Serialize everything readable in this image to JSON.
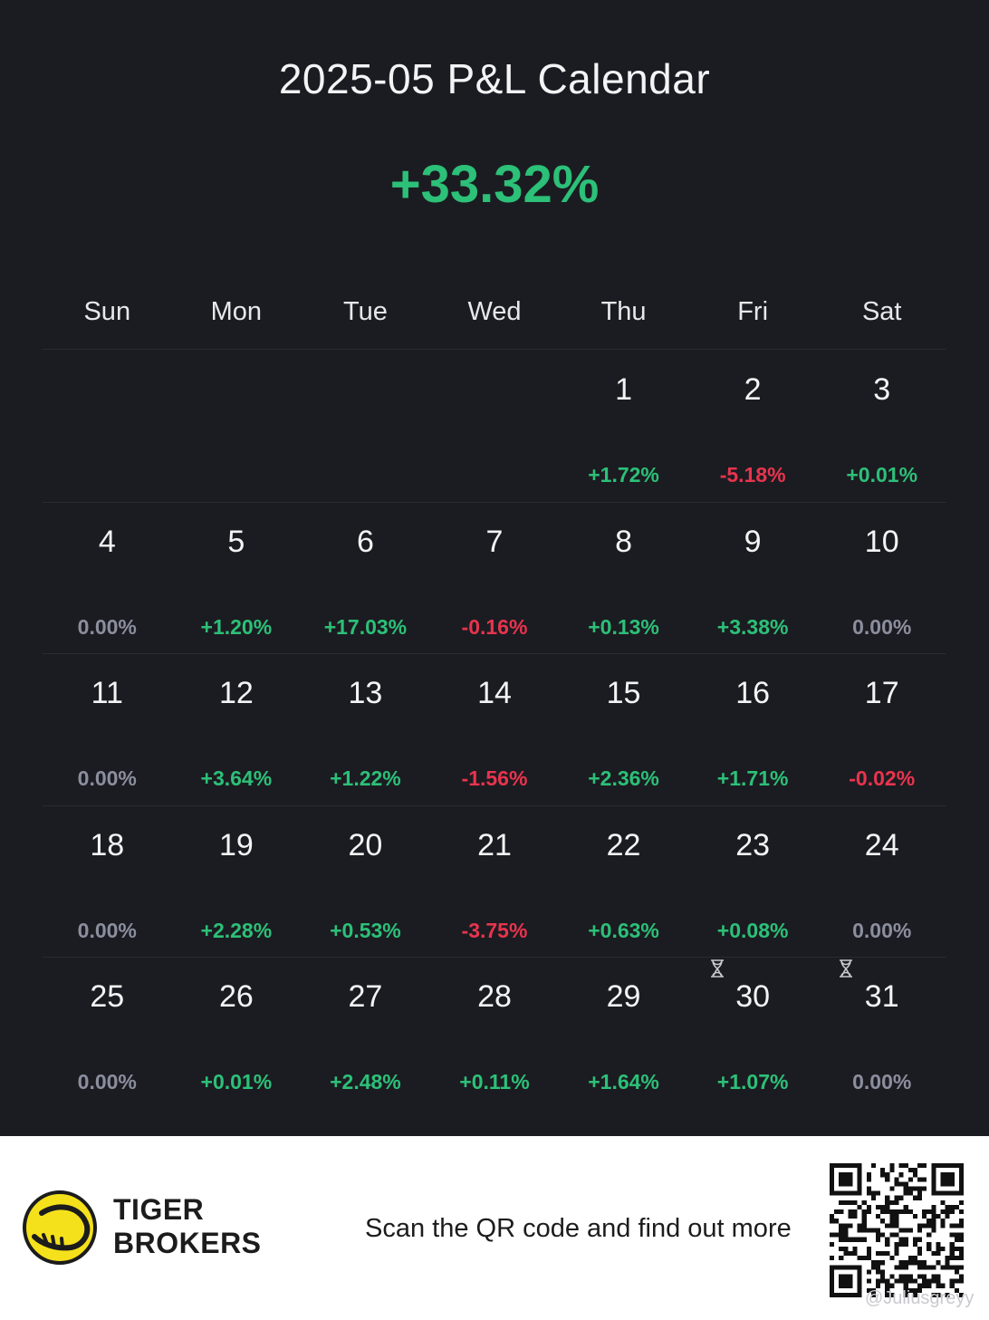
{
  "header": {
    "title": "2025-05 P&L Calendar",
    "total_pnl": "+33.32%",
    "total_color": "#2cc078"
  },
  "weekdays": [
    "Sun",
    "Mon",
    "Tue",
    "Wed",
    "Thu",
    "Fri",
    "Sat"
  ],
  "colors": {
    "background": "#1b1c21",
    "positive": "#2cc078",
    "negative": "#e8344e",
    "zero": "#8b8e9e",
    "divider": "#2a2b31"
  },
  "calendar": {
    "leading_empty_cells": 4,
    "days": [
      {
        "day": "1",
        "pnl": "+1.72%",
        "tone": "pos"
      },
      {
        "day": "2",
        "pnl": "-5.18%",
        "tone": "neg"
      },
      {
        "day": "3",
        "pnl": "+0.01%",
        "tone": "pos"
      },
      {
        "day": "4",
        "pnl": "0.00%",
        "tone": "zero"
      },
      {
        "day": "5",
        "pnl": "+1.20%",
        "tone": "pos"
      },
      {
        "day": "6",
        "pnl": "+17.03%",
        "tone": "pos"
      },
      {
        "day": "7",
        "pnl": "-0.16%",
        "tone": "neg"
      },
      {
        "day": "8",
        "pnl": "+0.13%",
        "tone": "pos"
      },
      {
        "day": "9",
        "pnl": "+3.38%",
        "tone": "pos"
      },
      {
        "day": "10",
        "pnl": "0.00%",
        "tone": "zero"
      },
      {
        "day": "11",
        "pnl": "0.00%",
        "tone": "zero"
      },
      {
        "day": "12",
        "pnl": "+3.64%",
        "tone": "pos"
      },
      {
        "day": "13",
        "pnl": "+1.22%",
        "tone": "pos"
      },
      {
        "day": "14",
        "pnl": "-1.56%",
        "tone": "neg"
      },
      {
        "day": "15",
        "pnl": "+2.36%",
        "tone": "pos"
      },
      {
        "day": "16",
        "pnl": "+1.71%",
        "tone": "pos"
      },
      {
        "day": "17",
        "pnl": "-0.02%",
        "tone": "neg"
      },
      {
        "day": "18",
        "pnl": "0.00%",
        "tone": "zero"
      },
      {
        "day": "19",
        "pnl": "+2.28%",
        "tone": "pos"
      },
      {
        "day": "20",
        "pnl": "+0.53%",
        "tone": "pos"
      },
      {
        "day": "21",
        "pnl": "-3.75%",
        "tone": "neg"
      },
      {
        "day": "22",
        "pnl": "+0.63%",
        "tone": "pos"
      },
      {
        "day": "23",
        "pnl": "+0.08%",
        "tone": "pos"
      },
      {
        "day": "24",
        "pnl": "0.00%",
        "tone": "zero"
      },
      {
        "day": "25",
        "pnl": "0.00%",
        "tone": "zero"
      },
      {
        "day": "26",
        "pnl": "+0.01%",
        "tone": "pos"
      },
      {
        "day": "27",
        "pnl": "+2.48%",
        "tone": "pos"
      },
      {
        "day": "28",
        "pnl": "+0.11%",
        "tone": "pos"
      },
      {
        "day": "29",
        "pnl": "+1.64%",
        "tone": "pos"
      },
      {
        "day": "30",
        "pnl": "+1.07%",
        "tone": "pos",
        "icon": "hourglass-icon"
      },
      {
        "day": "31",
        "pnl": "0.00%",
        "tone": "zero",
        "icon": "hourglass-icon"
      }
    ]
  },
  "footer": {
    "brand_line1": "TIGER",
    "brand_line2": "BROKERS",
    "tagline": "Scan the QR code and find out more",
    "logo_icon": "tiger-logo-icon",
    "logo_color": "#f5e11b",
    "qr_icon": "qr-code-icon",
    "watermark": "@Juliusgreyy"
  }
}
